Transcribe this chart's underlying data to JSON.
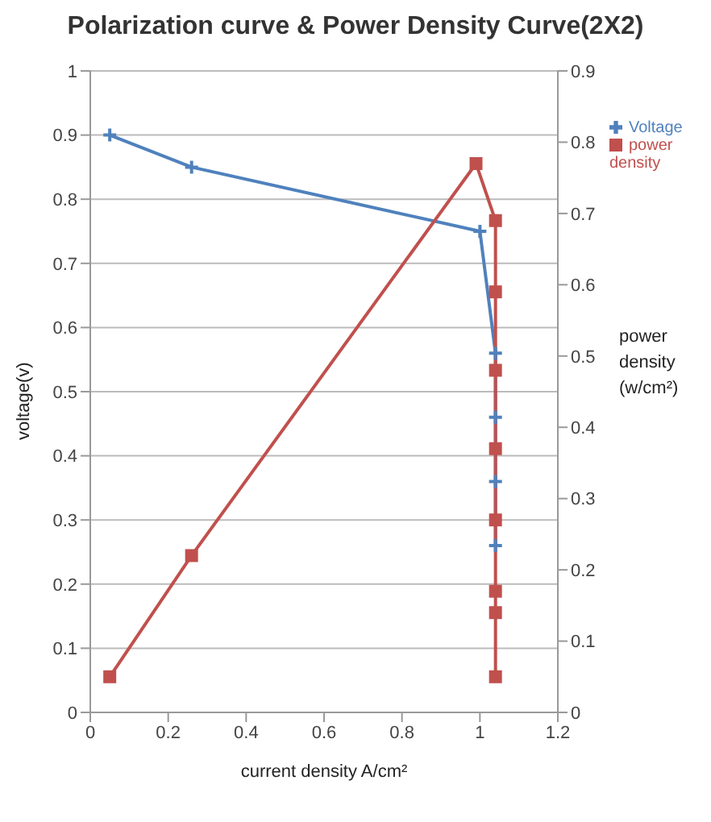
{
  "chart_data": {
    "type": "line",
    "title": "Polarization curve & Power Density Curve(2X2)",
    "xlabel": "current density A/cm²",
    "ylabel": "voltage(v)",
    "y2label": "power density (w/cm²)",
    "xlim": [
      0,
      1.2
    ],
    "xticks": [
      0,
      0.2,
      0.4,
      0.6,
      0.8,
      1,
      1.2
    ],
    "ylim": [
      0,
      1
    ],
    "yticks": [
      0,
      0.1,
      0.2,
      0.3,
      0.4,
      0.5,
      0.6,
      0.7,
      0.8,
      0.9,
      1
    ],
    "y2lim": [
      0,
      0.9
    ],
    "y2ticks": [
      0,
      0.1,
      0.2,
      0.3,
      0.4,
      0.5,
      0.6,
      0.7,
      0.8,
      0.9
    ],
    "grid": "y",
    "legend": "top right",
    "line_style": "solid",
    "series": [
      {
        "name": "Voltage",
        "color": "#4f81bd",
        "marker": "cross",
        "x": [
          0.05,
          0.26,
          1.0,
          1.04,
          1.04,
          1.04,
          1.04
        ],
        "values": [
          0.9,
          0.85,
          0.75,
          0.56,
          0.46,
          0.36,
          0.26
        ]
      },
      {
        "name": "power density",
        "color": "#c0504d",
        "marker": "square",
        "axis": "y2",
        "x": [
          0.05,
          0.26,
          0.99,
          1.04,
          1.04,
          1.04,
          1.04,
          1.04,
          1.04,
          1.04,
          1.04
        ],
        "values": [
          0.05,
          0.22,
          0.77,
          0.69,
          0.59,
          0.48,
          0.37,
          0.27,
          0.17,
          0.14,
          0.05
        ]
      }
    ]
  }
}
